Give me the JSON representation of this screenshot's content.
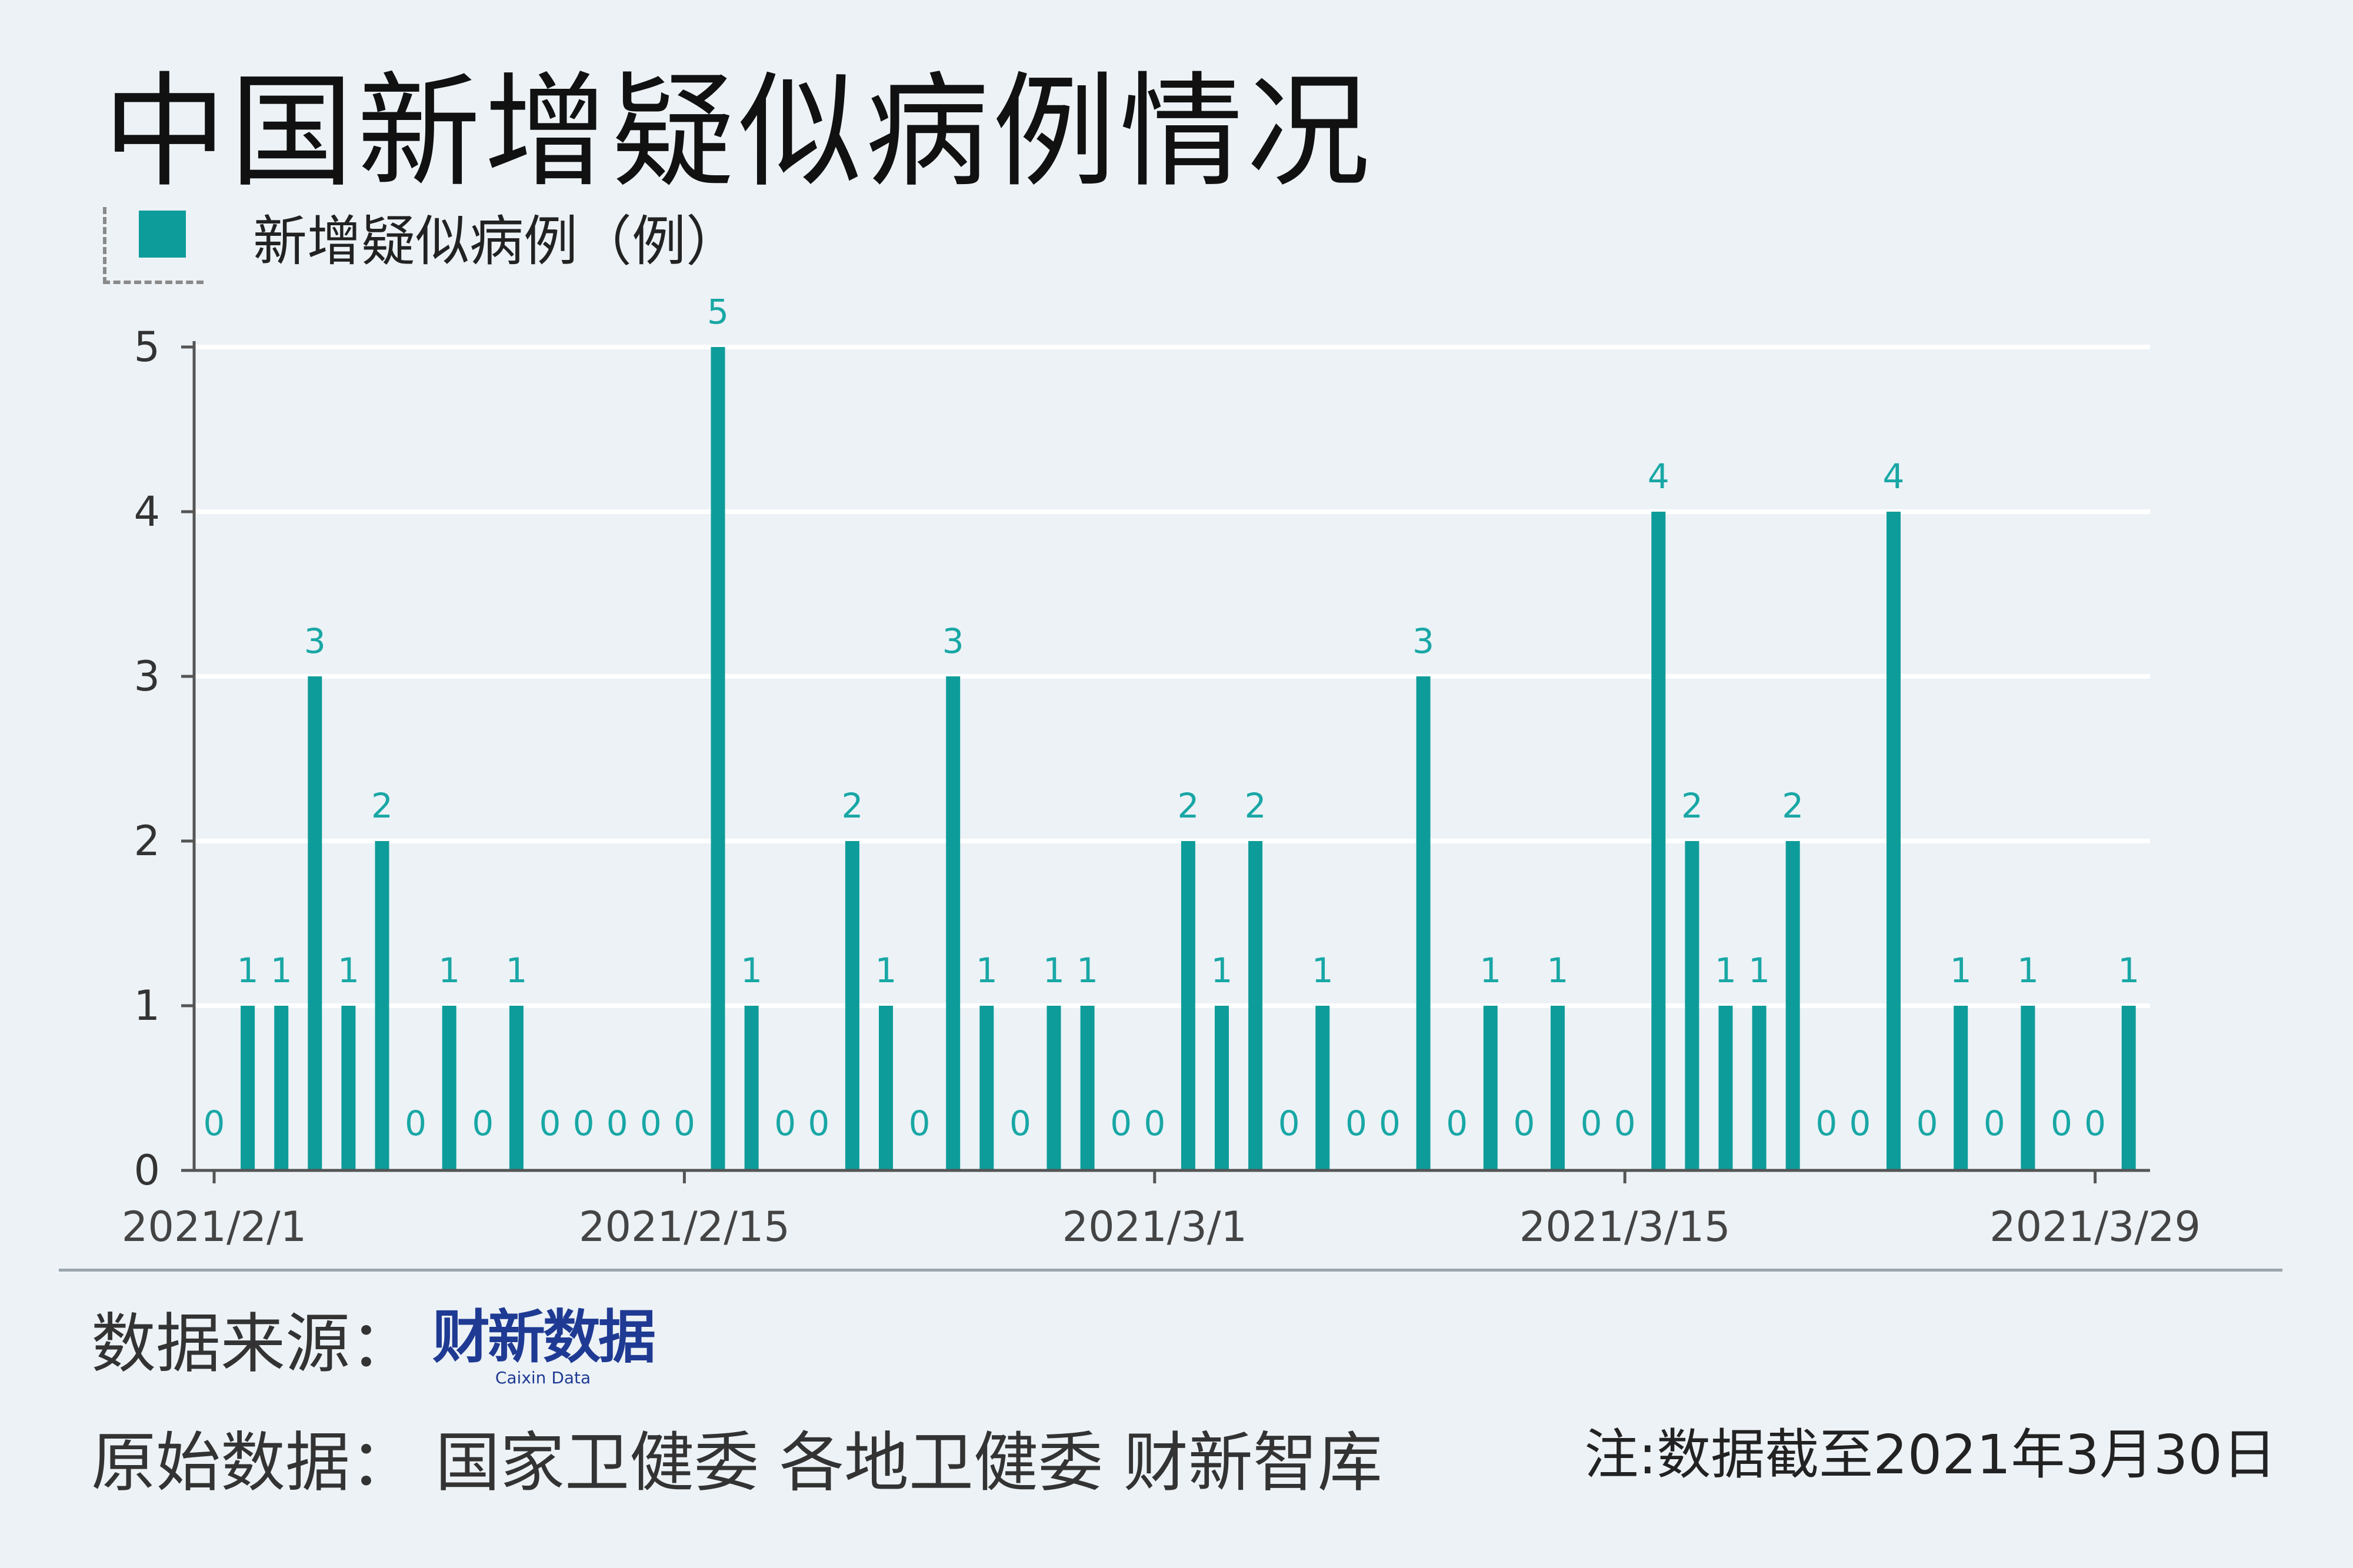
{
  "title": "中国新增疑似病例情况",
  "legend_label": "新增疑似病例（例）",
  "source_label": "数据来源：",
  "logo_main": "财新数据",
  "logo_sub": "Caixin Data",
  "raw_data": "原始数据：  国家卫健委  各地卫健委  财新智库",
  "note": "注:数据截至2021年3月30日",
  "colors": {
    "bar": "#0e9c9a",
    "label": "#18a7a5",
    "axis": "#555555",
    "grid": "#ffffff"
  },
  "chart_data": {
    "type": "bar",
    "series": [
      {
        "name": "新增疑似病例（例）",
        "values": [
          0,
          1,
          1,
          3,
          1,
          2,
          0,
          1,
          0,
          1,
          0,
          0,
          0,
          0,
          0,
          5,
          1,
          0,
          0,
          2,
          1,
          0,
          3,
          1,
          0,
          1,
          1,
          0,
          0,
          2,
          1,
          2,
          0,
          1,
          0,
          0,
          3,
          0,
          1,
          0,
          1,
          0,
          0,
          4,
          2,
          1,
          1,
          2,
          0,
          0,
          4,
          0,
          1,
          0,
          1,
          0,
          0,
          1
        ]
      }
    ],
    "x_start": "2021-02-01",
    "x_ticks": [
      "2021/2/1",
      "2021/2/15",
      "2021/3/1",
      "2021/3/15",
      "2021/3/29"
    ],
    "y_ticks": [
      "0",
      "1",
      "2",
      "3",
      "4",
      "5"
    ],
    "ylim": [
      0,
      5
    ],
    "grid": true,
    "legend_position": "top-left"
  }
}
